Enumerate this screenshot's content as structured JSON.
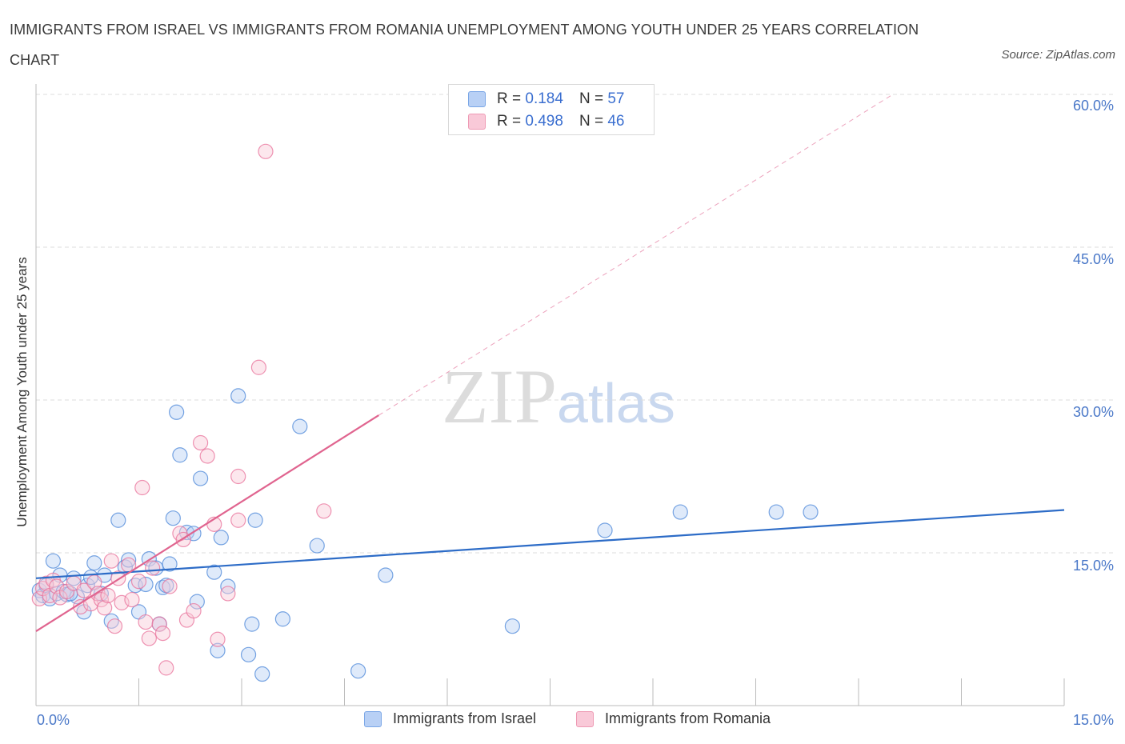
{
  "title": "IMMIGRANTS FROM ISRAEL VS IMMIGRANTS FROM ROMANIA UNEMPLOYMENT AMONG YOUTH UNDER 25 YEARS CORRELATION CHART",
  "source": "Source: ZipAtlas.com",
  "watermark": {
    "zip": "ZIP",
    "atlas": "atlas"
  },
  "colors": {
    "israel": "#4a86d8",
    "israel_fill": "#b8d0f5",
    "romania": "#e8709a",
    "romania_fill": "#f9c9d8",
    "grid": "#dddddd",
    "axis_text": "#4a78c8"
  },
  "legend": {
    "r_label": "R = ",
    "n_label": "N = ",
    "israel": {
      "r": "0.184",
      "n": "57"
    },
    "romania": {
      "r": "0.498",
      "n": "46"
    }
  },
  "chart_data": {
    "type": "scatter",
    "title": "IMMIGRANTS FROM ISRAEL VS IMMIGRANTS FROM ROMANIA UNEMPLOYMENT AMONG YOUTH UNDER 25 YEARS CORRELATION CHART",
    "xlabel": "",
    "ylabel": "Unemployment Among Youth under 25 years",
    "xlim": [
      0,
      15
    ],
    "ylim": [
      0,
      60
    ],
    "x_tick_labels": [
      "0.0%",
      "15.0%"
    ],
    "y_ticks": [
      15,
      30,
      45,
      60
    ],
    "y_tick_labels": [
      "15.0%",
      "30.0%",
      "45.0%",
      "60.0%"
    ],
    "legend_position": "top-center",
    "series": [
      {
        "name": "Immigrants from Israel",
        "r": 0.184,
        "n": 57,
        "trend": {
          "x0": 0,
          "y0": 12.5,
          "x1": 15,
          "y1": 19.2,
          "dashed_to": null
        },
        "points": [
          [
            0.05,
            11.3
          ],
          [
            0.1,
            10.8
          ],
          [
            0.15,
            11.8
          ],
          [
            0.2,
            10.5
          ],
          [
            0.25,
            14.2
          ],
          [
            0.3,
            11.0
          ],
          [
            0.35,
            12.8
          ],
          [
            0.4,
            11.2
          ],
          [
            0.45,
            10.9
          ],
          [
            0.55,
            12.5
          ],
          [
            0.6,
            10.7
          ],
          [
            0.7,
            9.2
          ],
          [
            0.75,
            11.8
          ],
          [
            0.8,
            12.6
          ],
          [
            0.85,
            14.0
          ],
          [
            0.95,
            11.0
          ],
          [
            1.0,
            12.8
          ],
          [
            1.1,
            8.3
          ],
          [
            1.2,
            18.2
          ],
          [
            1.3,
            13.6
          ],
          [
            1.35,
            14.3
          ],
          [
            1.45,
            11.8
          ],
          [
            1.5,
            9.2
          ],
          [
            1.6,
            11.9
          ],
          [
            1.65,
            14.4
          ],
          [
            1.75,
            13.5
          ],
          [
            1.8,
            8.0
          ],
          [
            1.85,
            11.6
          ],
          [
            1.9,
            11.8
          ],
          [
            1.95,
            13.9
          ],
          [
            2.0,
            18.4
          ],
          [
            2.05,
            28.8
          ],
          [
            2.1,
            24.6
          ],
          [
            2.2,
            17.0
          ],
          [
            2.3,
            16.9
          ],
          [
            2.35,
            10.2
          ],
          [
            2.4,
            22.3
          ],
          [
            2.6,
            13.1
          ],
          [
            2.65,
            5.4
          ],
          [
            2.7,
            16.5
          ],
          [
            2.8,
            11.7
          ],
          [
            2.95,
            30.4
          ],
          [
            3.1,
            5.0
          ],
          [
            3.15,
            8.0
          ],
          [
            3.2,
            18.2
          ],
          [
            3.3,
            3.1
          ],
          [
            3.6,
            8.5
          ],
          [
            3.85,
            27.4
          ],
          [
            4.1,
            15.7
          ],
          [
            4.7,
            3.4
          ],
          [
            5.1,
            12.8
          ],
          [
            6.95,
            7.8
          ],
          [
            8.3,
            17.2
          ],
          [
            9.4,
            19.0
          ],
          [
            10.8,
            19.0
          ],
          [
            11.3,
            19.0
          ],
          [
            0.5,
            11.0
          ]
        ]
      },
      {
        "name": "Immigrants from Romania",
        "r": 0.498,
        "n": 46,
        "trend": {
          "x0": 0,
          "y0": 7.3,
          "x1": 5.0,
          "y1": 28.5,
          "dashed_to": [
            12.5,
            60.0
          ]
        },
        "points": [
          [
            0.05,
            10.5
          ],
          [
            0.1,
            11.5
          ],
          [
            0.15,
            12.0
          ],
          [
            0.2,
            10.8
          ],
          [
            0.25,
            12.3
          ],
          [
            0.3,
            11.7
          ],
          [
            0.35,
            10.6
          ],
          [
            0.45,
            11.2
          ],
          [
            0.55,
            12.0
          ],
          [
            0.65,
            9.7
          ],
          [
            0.7,
            11.3
          ],
          [
            0.8,
            10.0
          ],
          [
            0.85,
            12.1
          ],
          [
            0.9,
            11.0
          ],
          [
            0.95,
            10.4
          ],
          [
            1.0,
            9.6
          ],
          [
            1.05,
            10.8
          ],
          [
            1.1,
            14.2
          ],
          [
            1.15,
            7.8
          ],
          [
            1.2,
            12.5
          ],
          [
            1.25,
            10.1
          ],
          [
            1.35,
            13.8
          ],
          [
            1.4,
            10.4
          ],
          [
            1.5,
            12.2
          ],
          [
            1.55,
            21.4
          ],
          [
            1.6,
            8.2
          ],
          [
            1.65,
            6.6
          ],
          [
            1.7,
            13.5
          ],
          [
            1.8,
            8.0
          ],
          [
            1.85,
            7.1
          ],
          [
            1.9,
            3.7
          ],
          [
            1.95,
            11.7
          ],
          [
            2.1,
            16.9
          ],
          [
            2.15,
            16.3
          ],
          [
            2.2,
            8.4
          ],
          [
            2.3,
            9.3
          ],
          [
            2.4,
            25.8
          ],
          [
            2.5,
            24.5
          ],
          [
            2.6,
            17.8
          ],
          [
            2.65,
            6.5
          ],
          [
            2.8,
            11.0
          ],
          [
            2.95,
            22.5
          ],
          [
            2.95,
            18.2
          ],
          [
            3.25,
            33.2
          ],
          [
            3.35,
            54.4
          ],
          [
            4.2,
            19.1
          ]
        ]
      }
    ]
  },
  "bottom_legend": {
    "israel": "Immigrants from Israel",
    "romania": "Immigrants from Romania"
  }
}
